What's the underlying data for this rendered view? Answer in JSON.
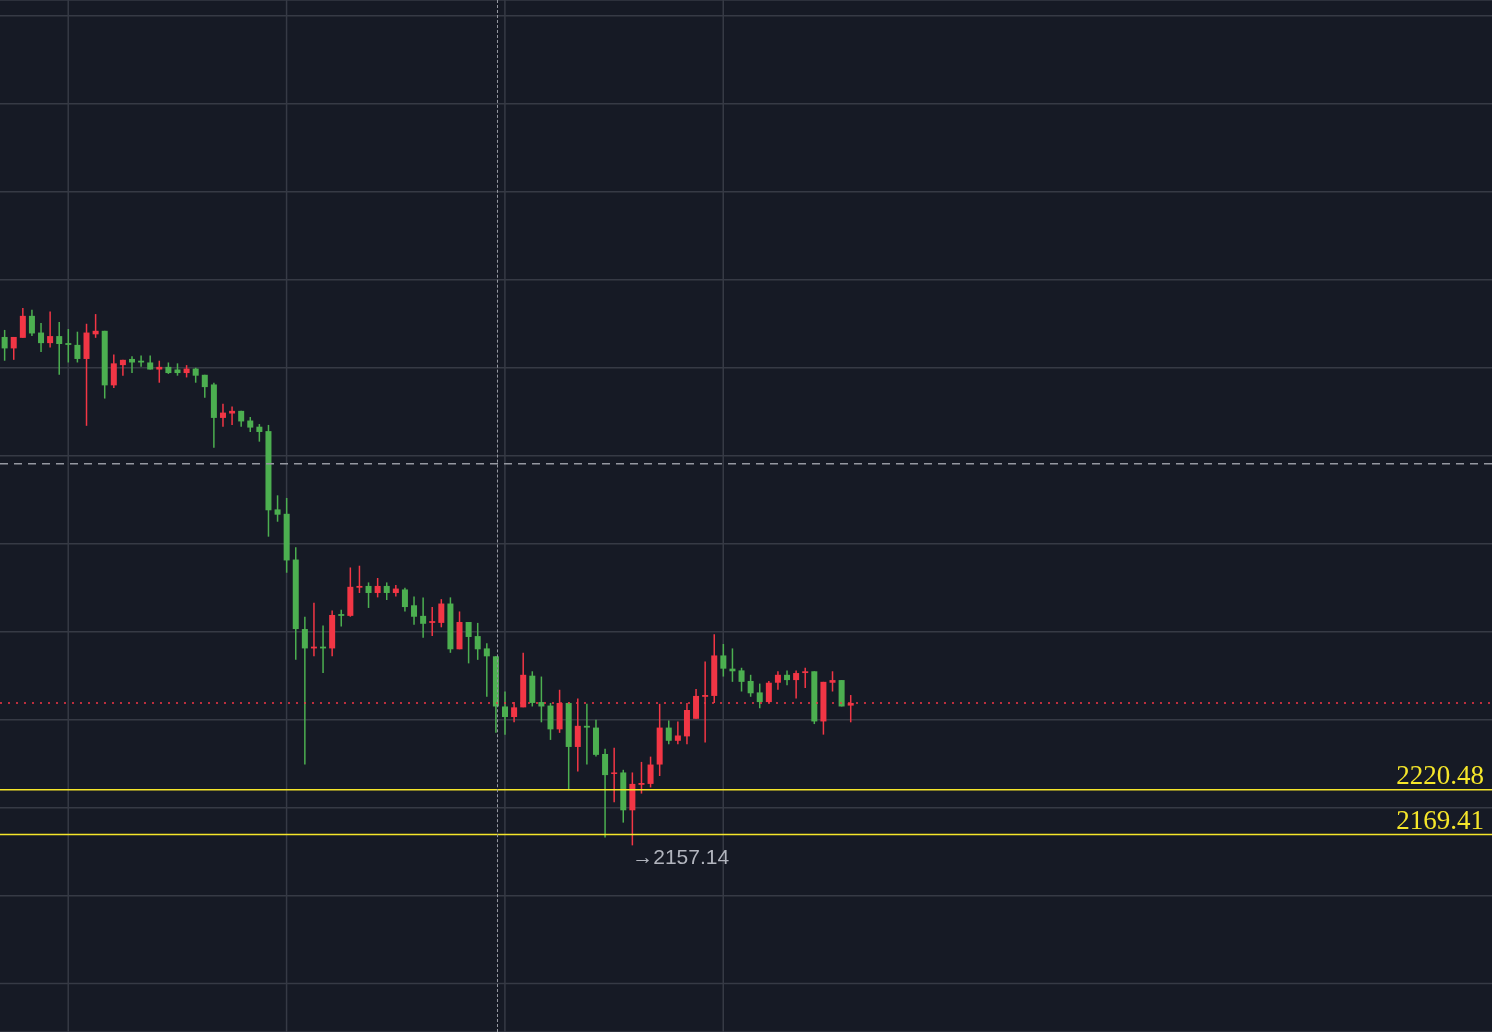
{
  "chart_data": {
    "type": "candlestick",
    "categories": [
      null,
      null,
      null,
      null,
      null,
      null,
      null,
      null,
      null,
      null,
      null,
      null,
      null,
      null,
      null,
      null,
      null,
      null,
      null,
      null,
      null,
      null,
      null,
      null,
      null,
      null,
      null,
      null,
      null,
      null,
      null,
      null,
      null,
      null,
      null,
      null,
      null,
      null,
      null,
      null,
      null,
      null,
      null,
      null,
      null,
      null,
      null,
      null,
      null,
      null,
      null,
      null,
      null,
      null,
      null,
      null,
      null,
      null,
      null,
      null,
      null,
      null,
      null,
      null,
      null,
      null,
      null,
      null,
      null,
      null,
      null,
      null,
      null,
      null,
      null,
      null,
      null,
      null,
      null,
      null,
      null,
      null,
      null,
      null,
      null,
      null,
      null,
      null,
      null,
      null,
      null,
      null,
      null,
      null,
      null,
      null,
      null,
      null,
      null,
      null,
      null,
      null,
      null,
      null,
      null,
      null,
      null,
      null,
      null,
      null,
      null,
      null,
      null,
      null,
      null,
      null,
      null,
      null,
      null,
      null,
      null,
      null,
      null,
      null,
      null,
      null,
      null,
      null,
      null,
      null,
      null,
      null,
      null,
      null,
      null,
      null,
      null,
      null,
      null,
      null,
      null,
      null,
      null,
      null,
      null,
      null,
      null,
      null,
      null,
      null,
      null,
      null,
      null,
      null,
      null,
      null,
      null,
      null,
      null,
      null,
      null,
      null,
      null,
      null
    ],
    "ohlc": [
      [
        2735,
        2743,
        2708,
        2722
      ],
      [
        2722,
        2735,
        2709,
        2735
      ],
      [
        2734,
        2768,
        2734,
        2759
      ],
      [
        2759,
        2766,
        2736,
        2739
      ],
      [
        2740,
        2751,
        2718,
        2728
      ],
      [
        2728,
        2764,
        2723,
        2736
      ],
      [
        2736,
        2752,
        2692,
        2727
      ],
      [
        2728,
        2744,
        2706,
        2726
      ],
      [
        2726,
        2741,
        2706,
        2710
      ],
      [
        2710,
        2750,
        2634,
        2740
      ],
      [
        2738,
        2761,
        2734,
        2742
      ],
      [
        2742,
        2742,
        2665,
        2680
      ],
      [
        2680,
        2715,
        2677,
        2705
      ],
      [
        2703,
        2709,
        2691,
        2709
      ],
      [
        2710,
        2713,
        2694,
        2706
      ],
      [
        2708,
        2714,
        2701,
        2706
      ],
      [
        2706,
        2714,
        2698,
        2698
      ],
      [
        2698,
        2708,
        2683,
        2701
      ],
      [
        2701,
        2706,
        2693,
        2694
      ],
      [
        2698,
        2705,
        2691,
        2694
      ],
      [
        2694,
        2703,
        2689,
        2699
      ],
      [
        2699,
        2700,
        2683,
        2691
      ],
      [
        2692,
        2692,
        2666,
        2678
      ],
      [
        2681,
        2683,
        2609,
        2643
      ],
      [
        2643,
        2659,
        2633,
        2649
      ],
      [
        2648,
        2656,
        2635,
        2651
      ],
      [
        2651,
        2651,
        2633,
        2639
      ],
      [
        2640,
        2644,
        2627,
        2632
      ],
      [
        2633,
        2636,
        2616,
        2627
      ],
      [
        2628,
        2635,
        2508,
        2538
      ],
      [
        2539,
        2555,
        2525,
        2533
      ],
      [
        2534,
        2552,
        2467,
        2481
      ],
      [
        2482,
        2496,
        2368,
        2403
      ],
      [
        2403,
        2417,
        2249,
        2381
      ],
      [
        2381,
        2433,
        2372,
        2383
      ],
      [
        2383,
        2407,
        2353,
        2381
      ],
      [
        2381,
        2424,
        2372,
        2419
      ],
      [
        2420,
        2425,
        2406,
        2418
      ],
      [
        2418,
        2473,
        2417,
        2451
      ],
      [
        2450,
        2475,
        2444,
        2452
      ],
      [
        2452,
        2456,
        2427,
        2444
      ],
      [
        2444,
        2461,
        2439,
        2452
      ],
      [
        2452,
        2456,
        2436,
        2444
      ],
      [
        2444,
        2453,
        2440,
        2449
      ],
      [
        2448,
        2450,
        2423,
        2428
      ],
      [
        2430,
        2440,
        2408,
        2417
      ],
      [
        2418,
        2439,
        2393,
        2409
      ],
      [
        2410,
        2428,
        2395,
        2412
      ],
      [
        2410,
        2437,
        2405,
        2432
      ],
      [
        2432,
        2439,
        2376,
        2380
      ],
      [
        2380,
        2423,
        2380,
        2411
      ],
      [
        2411,
        2411,
        2364,
        2394
      ],
      [
        2395,
        2410,
        2368,
        2380
      ],
      [
        2381,
        2387,
        2326,
        2372
      ],
      [
        2372,
        2372,
        2285,
        2315
      ],
      [
        2315,
        2332,
        2283,
        2303
      ],
      [
        2303,
        2320,
        2297,
        2314
      ],
      [
        2314,
        2376,
        2314,
        2351
      ],
      [
        2350,
        2355,
        2315,
        2319
      ],
      [
        2320,
        2349,
        2297,
        2315
      ],
      [
        2316,
        2319,
        2277,
        2289
      ],
      [
        2289,
        2334,
        2285,
        2319
      ],
      [
        2319,
        2320,
        2220,
        2269
      ],
      [
        2269,
        2324,
        2241,
        2293
      ],
      [
        2293,
        2318,
        2249,
        2291
      ],
      [
        2291,
        2300,
        2258,
        2260
      ],
      [
        2261,
        2267,
        2166,
        2237
      ],
      [
        2239,
        2268,
        2206,
        2240
      ],
      [
        2240,
        2243,
        2183,
        2197
      ],
      [
        2197,
        2240,
        2157.14,
        2227
      ],
      [
        2226,
        2252,
        2216,
        2228
      ],
      [
        2227,
        2258,
        2223,
        2249
      ],
      [
        2249,
        2318,
        2236,
        2291
      ],
      [
        2291,
        2299,
        2272,
        2276
      ],
      [
        2276,
        2298,
        2272,
        2282
      ],
      [
        2281,
        2319,
        2272,
        2311
      ],
      [
        2301,
        2335,
        2301,
        2327
      ],
      [
        2326,
        2366,
        2274,
        2328
      ],
      [
        2327,
        2397,
        2319,
        2373
      ],
      [
        2373,
        2386,
        2349,
        2358
      ],
      [
        2358,
        2381,
        2343,
        2355
      ],
      [
        2356,
        2359,
        2332,
        2343
      ],
      [
        2344,
        2351,
        2326,
        2330
      ],
      [
        2331,
        2341,
        2313,
        2320
      ],
      [
        2320,
        2344,
        2319,
        2342
      ],
      [
        2342,
        2355,
        2334,
        2351
      ],
      [
        2351,
        2356,
        2339,
        2345
      ],
      [
        2345,
        2356,
        2324,
        2353
      ],
      [
        2353,
        2359,
        2336,
        2355
      ],
      [
        2355,
        2355,
        2295,
        2298
      ],
      [
        2298,
        2343,
        2283,
        2343
      ],
      [
        2342,
        2355,
        2332,
        2345
      ],
      [
        2345,
        2345,
        2315,
        2315
      ],
      [
        2316,
        2328,
        2297,
        2319
      ],
      null,
      null,
      null,
      null,
      null,
      null,
      null,
      null,
      null,
      null,
      null,
      null,
      null,
      null,
      null,
      null,
      null,
      null,
      null,
      null,
      null,
      null,
      null,
      null,
      null,
      null,
      null,
      null,
      null,
      null,
      null,
      null,
      null,
      null,
      null,
      null,
      null,
      null,
      null,
      null,
      null,
      null,
      null,
      null,
      null,
      null,
      null,
      null,
      null,
      null,
      null,
      null,
      null,
      null,
      null,
      null,
      null,
      null,
      null,
      null,
      null,
      null,
      null,
      null,
      null,
      null,
      null,
      null,
      null,
      null
    ],
    "colors": [
      "#4caf50",
      "#f23645",
      "#f23645",
      "#4caf50",
      "#4caf50",
      "#f23645",
      "#4caf50",
      "#4caf50",
      "#4caf50",
      "#f23645",
      "#f23645",
      "#4caf50",
      "#f23645",
      "#f23645",
      "#4caf50",
      "#4caf50",
      "#4caf50",
      "#f23645",
      "#4caf50",
      "#4caf50",
      "#f23645",
      "#4caf50",
      "#4caf50",
      "#4caf50",
      "#f23645",
      "#f23645",
      "#4caf50",
      "#4caf50",
      "#4caf50",
      "#4caf50",
      "#4caf50",
      "#4caf50",
      "#4caf50",
      "#4caf50",
      "#f23645",
      "#4caf50",
      "#f23645",
      "#4caf50",
      "#f23645",
      "#f23645",
      "#4caf50",
      "#f23645",
      "#4caf50",
      "#f23645",
      "#4caf50",
      "#4caf50",
      "#4caf50",
      "#f23645",
      "#f23645",
      "#4caf50",
      "#f23645",
      "#4caf50",
      "#4caf50",
      "#4caf50",
      "#4caf50",
      "#4caf50",
      "#f23645",
      "#f23645",
      "#4caf50",
      "#4caf50",
      "#4caf50",
      "#f23645",
      "#4caf50",
      "#f23645",
      "#4caf50",
      "#4caf50",
      "#4caf50",
      "#f23645",
      "#4caf50",
      "#f23645",
      "#f23645",
      "#f23645",
      "#f23645",
      "#4caf50",
      "#f23645",
      "#f23645",
      "#f23645",
      "#f23645",
      "#f23645",
      "#4caf50",
      "#4caf50",
      "#4caf50",
      "#4caf50",
      "#4caf50",
      "#f23645",
      "#f23645",
      "#4caf50",
      "#f23645",
      "#f23645",
      "#4caf50",
      "#f23645",
      "#f23645",
      "#4caf50",
      "#f23645",
      null,
      null,
      null,
      null,
      null,
      null,
      null,
      null,
      null,
      null,
      null,
      null,
      null,
      null,
      null,
      null,
      null,
      null,
      null,
      null,
      null,
      null,
      null,
      null,
      null,
      null,
      null,
      null,
      null,
      null,
      null,
      null,
      null,
      null,
      null,
      null,
      null,
      null,
      null,
      null,
      null,
      null,
      null,
      null,
      null,
      null,
      null,
      null,
      null,
      null,
      null,
      null,
      null,
      null,
      null,
      null,
      null,
      null,
      null,
      null,
      null,
      null,
      null,
      null,
      null,
      null,
      null,
      null,
      null,
      null
    ],
    "ylim": [
      1945,
      3118
    ],
    "yticks": [
      {
        "value": 2000,
        "label": null
      },
      {
        "value": 2100,
        "label": null
      },
      {
        "value": 2200,
        "label": null
      },
      {
        "value": 2300,
        "label": null
      },
      {
        "value": 2400,
        "label": null
      },
      {
        "value": 2500,
        "label": null
      },
      {
        "value": 2600,
        "label": null
      },
      {
        "value": 2700,
        "label": null
      },
      {
        "value": 2800,
        "label": null
      },
      {
        "value": 2900,
        "label": null
      },
      {
        "value": 3000,
        "label": null
      },
      {
        "value": 3100,
        "label": null
      }
    ],
    "grid": true,
    "ref_lines": [
      {
        "axis": "y",
        "value": 2591,
        "color": "#9598a1",
        "line_style": "dashed"
      },
      {
        "axis": "y",
        "value": 2319,
        "color": "#f23645",
        "line_style": "dotted"
      },
      {
        "axis": "y",
        "value": 2220.48,
        "label": "2220.48",
        "color": "#f5e62a",
        "line_style": "solid"
      },
      {
        "axis": "y",
        "value": 2169.41,
        "label": "2169.41",
        "color": "#f5e62a",
        "line_style": "solid"
      }
    ],
    "annotations": [
      "→2157.14"
    ]
  }
}
